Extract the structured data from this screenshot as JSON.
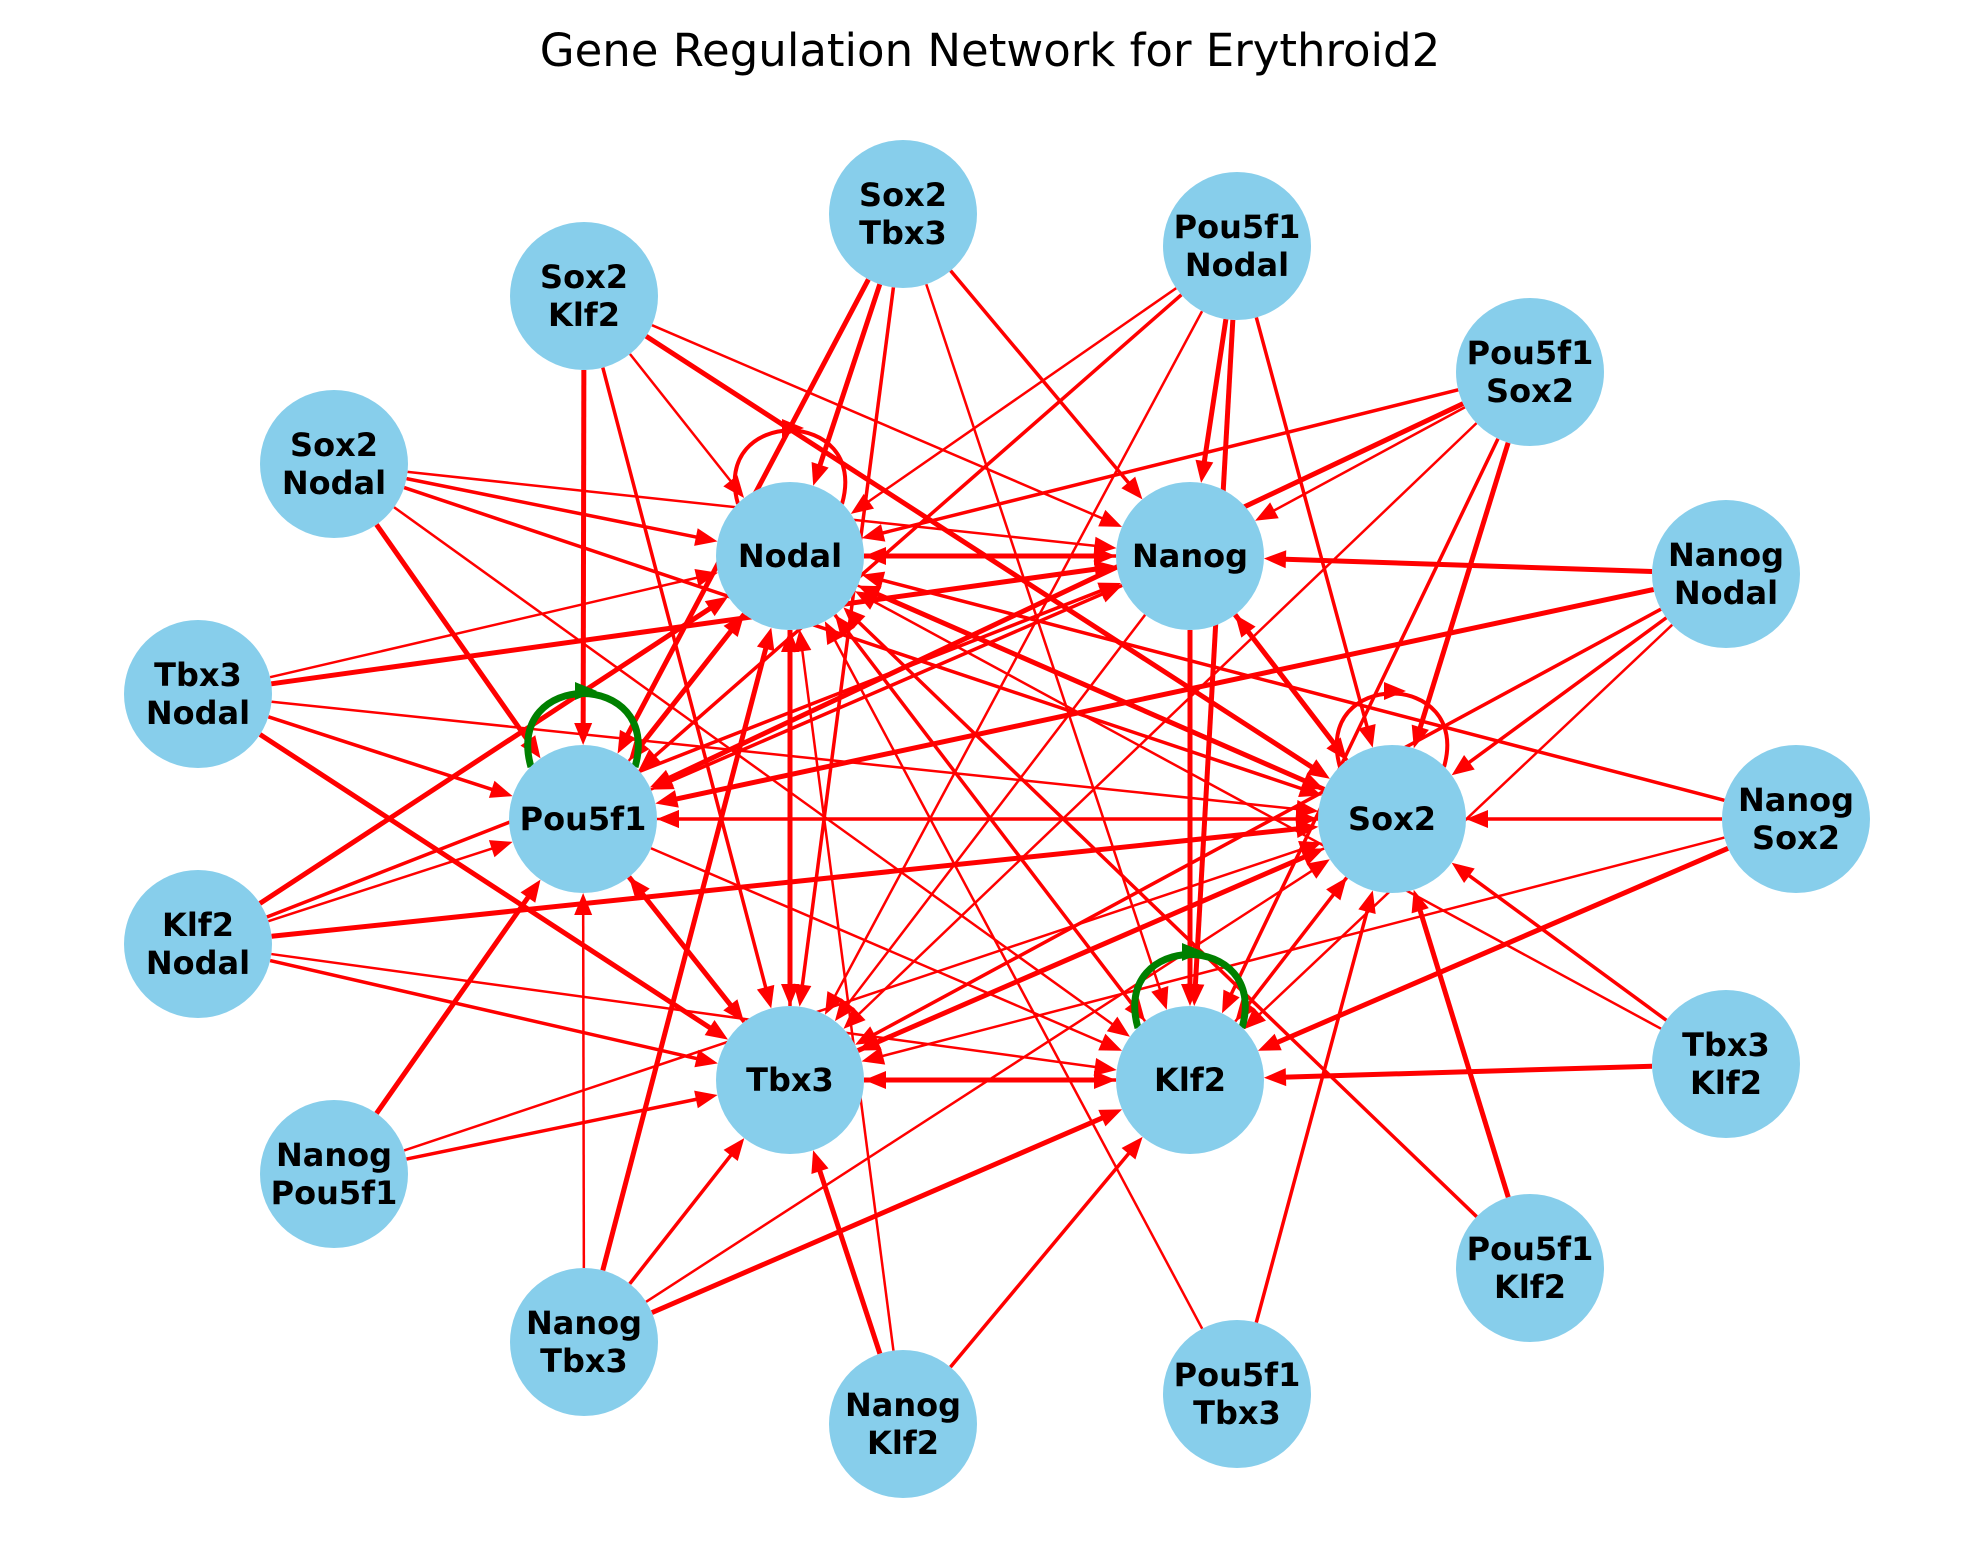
{
  "title": "Gene Regulation Network for Erythroid2",
  "colors": {
    "node_fill": "#87CEEB",
    "inhibit": "#FF0000",
    "activate": "#008000",
    "label": "#000000"
  },
  "nodes": [
    {
      "id": "Nodal",
      "lines": [
        "Nodal"
      ]
    },
    {
      "id": "Nanog",
      "lines": [
        "Nanog"
      ]
    },
    {
      "id": "Pou5f1",
      "lines": [
        "Pou5f1"
      ]
    },
    {
      "id": "Sox2",
      "lines": [
        "Sox2"
      ]
    },
    {
      "id": "Tbx3",
      "lines": [
        "Tbx3"
      ]
    },
    {
      "id": "Klf2",
      "lines": [
        "Klf2"
      ]
    },
    {
      "id": "Sox2_Tbx3",
      "lines": [
        "Sox2",
        "Tbx3"
      ]
    },
    {
      "id": "Pou5f1_Nodal",
      "lines": [
        "Pou5f1",
        "Nodal"
      ]
    },
    {
      "id": "Sox2_Klf2",
      "lines": [
        "Sox2",
        "Klf2"
      ]
    },
    {
      "id": "Pou5f1_Sox2",
      "lines": [
        "Pou5f1",
        "Sox2"
      ]
    },
    {
      "id": "Sox2_Nodal",
      "lines": [
        "Sox2",
        "Nodal"
      ]
    },
    {
      "id": "Nanog_Nodal",
      "lines": [
        "Nanog",
        "Nodal"
      ]
    },
    {
      "id": "Tbx3_Nodal",
      "lines": [
        "Tbx3",
        "Nodal"
      ]
    },
    {
      "id": "Nanog_Sox2",
      "lines": [
        "Nanog",
        "Sox2"
      ]
    },
    {
      "id": "Klf2_Nodal",
      "lines": [
        "Klf2",
        "Nodal"
      ]
    },
    {
      "id": "Tbx3_Klf2",
      "lines": [
        "Tbx3",
        "Klf2"
      ]
    },
    {
      "id": "Nanog_Pou5f1",
      "lines": [
        "Nanog",
        "Pou5f1"
      ]
    },
    {
      "id": "Pou5f1_Klf2",
      "lines": [
        "Pou5f1",
        "Klf2"
      ]
    },
    {
      "id": "Nanog_Tbx3",
      "lines": [
        "Nanog",
        "Tbx3"
      ]
    },
    {
      "id": "Pou5f1_Tbx3",
      "lines": [
        "Pou5f1",
        "Tbx3"
      ]
    },
    {
      "id": "Nanog_Klf2",
      "lines": [
        "Nanog",
        "Klf2"
      ]
    }
  ],
  "edges": [
    {
      "source": "Nodal",
      "target": "Nanog",
      "type": "inhibit"
    },
    {
      "source": "Nanog",
      "target": "Nodal",
      "type": "inhibit"
    },
    {
      "source": "Nodal",
      "target": "Sox2",
      "type": "inhibit"
    },
    {
      "source": "Sox2",
      "target": "Nodal",
      "type": "inhibit"
    },
    {
      "source": "Nodal",
      "target": "Klf2",
      "type": "inhibit"
    },
    {
      "source": "Klf2",
      "target": "Nodal",
      "type": "inhibit"
    },
    {
      "source": "Nodal",
      "target": "Tbx3",
      "type": "inhibit"
    },
    {
      "source": "Tbx3",
      "target": "Nodal",
      "type": "inhibit"
    },
    {
      "source": "Pou5f1",
      "target": "Nodal",
      "type": "inhibit"
    },
    {
      "source": "Nodal",
      "target": "Pou5f1",
      "type": "inhibit"
    },
    {
      "source": "Nanog",
      "target": "Pou5f1",
      "type": "inhibit"
    },
    {
      "source": "Pou5f1",
      "target": "Nanog",
      "type": "inhibit"
    },
    {
      "source": "Nanog",
      "target": "Sox2",
      "type": "inhibit"
    },
    {
      "source": "Sox2",
      "target": "Nanog",
      "type": "inhibit"
    },
    {
      "source": "Nanog",
      "target": "Tbx3",
      "type": "inhibit"
    },
    {
      "source": "Nanog",
      "target": "Klf2",
      "type": "inhibit"
    },
    {
      "source": "Sox2",
      "target": "Pou5f1",
      "type": "inhibit"
    },
    {
      "source": "Pou5f1",
      "target": "Sox2",
      "type": "inhibit"
    },
    {
      "source": "Pou5f1",
      "target": "Tbx3",
      "type": "inhibit"
    },
    {
      "source": "Tbx3",
      "target": "Pou5f1",
      "type": "inhibit"
    },
    {
      "source": "Pou5f1",
      "target": "Klf2",
      "type": "inhibit"
    },
    {
      "source": "Tbx3",
      "target": "Klf2",
      "type": "inhibit"
    },
    {
      "source": "Klf2",
      "target": "Tbx3",
      "type": "inhibit"
    },
    {
      "source": "Sox2",
      "target": "Tbx3",
      "type": "inhibit"
    },
    {
      "source": "Tbx3",
      "target": "Sox2",
      "type": "inhibit"
    },
    {
      "source": "Sox2",
      "target": "Klf2",
      "type": "inhibit"
    },
    {
      "source": "Klf2",
      "target": "Sox2",
      "type": "inhibit"
    },
    {
      "source": "Sox2_Tbx3",
      "target": "Nodal",
      "type": "inhibit"
    },
    {
      "source": "Sox2_Tbx3",
      "target": "Nanog",
      "type": "inhibit"
    },
    {
      "source": "Sox2_Tbx3",
      "target": "Klf2",
      "type": "inhibit"
    },
    {
      "source": "Sox2_Tbx3",
      "target": "Pou5f1",
      "type": "inhibit"
    },
    {
      "source": "Sox2_Tbx3",
      "target": "Tbx3",
      "type": "inhibit"
    },
    {
      "source": "Pou5f1_Nodal",
      "target": "Nodal",
      "type": "inhibit"
    },
    {
      "source": "Pou5f1_Nodal",
      "target": "Nanog",
      "type": "inhibit"
    },
    {
      "source": "Pou5f1_Nodal",
      "target": "Sox2",
      "type": "inhibit"
    },
    {
      "source": "Pou5f1_Nodal",
      "target": "Tbx3",
      "type": "inhibit"
    },
    {
      "source": "Pou5f1_Nodal",
      "target": "Klf2",
      "type": "inhibit"
    },
    {
      "source": "Pou5f1_Nodal",
      "target": "Pou5f1",
      "type": "inhibit"
    },
    {
      "source": "Sox2_Klf2",
      "target": "Nodal",
      "type": "inhibit"
    },
    {
      "source": "Sox2_Klf2",
      "target": "Pou5f1",
      "type": "inhibit"
    },
    {
      "source": "Sox2_Klf2",
      "target": "Tbx3",
      "type": "inhibit"
    },
    {
      "source": "Sox2_Klf2",
      "target": "Nanog",
      "type": "inhibit"
    },
    {
      "source": "Sox2_Klf2",
      "target": "Sox2",
      "type": "inhibit"
    },
    {
      "source": "Pou5f1_Sox2",
      "target": "Nodal",
      "type": "inhibit"
    },
    {
      "source": "Pou5f1_Sox2",
      "target": "Nanog",
      "type": "inhibit"
    },
    {
      "source": "Pou5f1_Sox2",
      "target": "Sox2",
      "type": "inhibit"
    },
    {
      "source": "Pou5f1_Sox2",
      "target": "Klf2",
      "type": "inhibit"
    },
    {
      "source": "Pou5f1_Sox2",
      "target": "Tbx3",
      "type": "inhibit"
    },
    {
      "source": "Pou5f1_Sox2",
      "target": "Pou5f1",
      "type": "inhibit"
    },
    {
      "source": "Sox2_Nodal",
      "target": "Nodal",
      "type": "inhibit"
    },
    {
      "source": "Sox2_Nodal",
      "target": "Nanog",
      "type": "inhibit"
    },
    {
      "source": "Sox2_Nodal",
      "target": "Pou5f1",
      "type": "inhibit"
    },
    {
      "source": "Sox2_Nodal",
      "target": "Sox2",
      "type": "inhibit"
    },
    {
      "source": "Sox2_Nodal",
      "target": "Klf2",
      "type": "inhibit"
    },
    {
      "source": "Nanog_Nodal",
      "target": "Nanog",
      "type": "inhibit"
    },
    {
      "source": "Nanog_Nodal",
      "target": "Sox2",
      "type": "inhibit"
    },
    {
      "source": "Nanog_Nodal",
      "target": "Klf2",
      "type": "inhibit"
    },
    {
      "source": "Nanog_Nodal",
      "target": "Pou5f1",
      "type": "inhibit"
    },
    {
      "source": "Nanog_Nodal",
      "target": "Tbx3",
      "type": "inhibit"
    },
    {
      "source": "Tbx3_Nodal",
      "target": "Nodal",
      "type": "inhibit"
    },
    {
      "source": "Tbx3_Nodal",
      "target": "Nanog",
      "type": "inhibit"
    },
    {
      "source": "Tbx3_Nodal",
      "target": "Pou5f1",
      "type": "inhibit"
    },
    {
      "source": "Tbx3_Nodal",
      "target": "Sox2",
      "type": "inhibit"
    },
    {
      "source": "Tbx3_Nodal",
      "target": "Tbx3",
      "type": "inhibit"
    },
    {
      "source": "Nanog_Sox2",
      "target": "Sox2",
      "type": "inhibit"
    },
    {
      "source": "Nanog_Sox2",
      "target": "Pou5f1",
      "type": "inhibit"
    },
    {
      "source": "Nanog_Sox2",
      "target": "Klf2",
      "type": "inhibit"
    },
    {
      "source": "Nanog_Sox2",
      "target": "Nodal",
      "type": "inhibit"
    },
    {
      "source": "Nanog_Sox2",
      "target": "Tbx3",
      "type": "inhibit"
    },
    {
      "source": "Klf2_Nodal",
      "target": "Nodal",
      "type": "inhibit"
    },
    {
      "source": "Klf2_Nodal",
      "target": "Nanog",
      "type": "inhibit"
    },
    {
      "source": "Klf2_Nodal",
      "target": "Pou5f1",
      "type": "inhibit"
    },
    {
      "source": "Klf2_Nodal",
      "target": "Sox2",
      "type": "inhibit"
    },
    {
      "source": "Klf2_Nodal",
      "target": "Tbx3",
      "type": "inhibit"
    },
    {
      "source": "Klf2_Nodal",
      "target": "Klf2",
      "type": "inhibit"
    },
    {
      "source": "Tbx3_Klf2",
      "target": "Klf2",
      "type": "inhibit"
    },
    {
      "source": "Tbx3_Klf2",
      "target": "Sox2",
      "type": "inhibit"
    },
    {
      "source": "Tbx3_Klf2",
      "target": "Nodal",
      "type": "inhibit"
    },
    {
      "source": "Nanog_Pou5f1",
      "target": "Pou5f1",
      "type": "inhibit"
    },
    {
      "source": "Nanog_Pou5f1",
      "target": "Tbx3",
      "type": "inhibit"
    },
    {
      "source": "Nanog_Pou5f1",
      "target": "Sox2",
      "type": "inhibit"
    },
    {
      "source": "Pou5f1_Klf2",
      "target": "Sox2",
      "type": "inhibit"
    },
    {
      "source": "Pou5f1_Klf2",
      "target": "Nodal",
      "type": "inhibit"
    },
    {
      "source": "Nanog_Tbx3",
      "target": "Pou5f1",
      "type": "inhibit"
    },
    {
      "source": "Nanog_Tbx3",
      "target": "Nodal",
      "type": "inhibit"
    },
    {
      "source": "Nanog_Tbx3",
      "target": "Tbx3",
      "type": "inhibit"
    },
    {
      "source": "Nanog_Tbx3",
      "target": "Sox2",
      "type": "inhibit"
    },
    {
      "source": "Nanog_Tbx3",
      "target": "Klf2",
      "type": "inhibit"
    },
    {
      "source": "Pou5f1_Tbx3",
      "target": "Sox2",
      "type": "inhibit"
    },
    {
      "source": "Pou5f1_Tbx3",
      "target": "Nodal",
      "type": "inhibit"
    },
    {
      "source": "Nanog_Klf2",
      "target": "Tbx3",
      "type": "inhibit"
    },
    {
      "source": "Nanog_Klf2",
      "target": "Klf2",
      "type": "inhibit"
    },
    {
      "source": "Nanog_Klf2",
      "target": "Nodal",
      "type": "inhibit"
    }
  ],
  "self_loops": [
    {
      "node": "Nodal",
      "type": "inhibit"
    },
    {
      "node": "Sox2",
      "type": "inhibit"
    },
    {
      "node": "Pou5f1",
      "type": "activate"
    },
    {
      "node": "Klf2",
      "type": "activate"
    }
  ]
}
